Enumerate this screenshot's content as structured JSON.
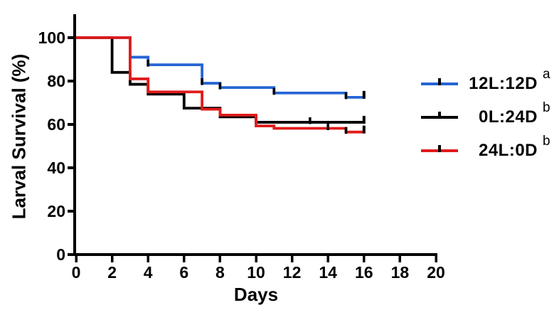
{
  "chart_data": {
    "type": "line",
    "subtype": "kaplan-meier-step-survival",
    "title": "",
    "xlabel": "Days",
    "ylabel": "Larval Survival (%)",
    "xlim": [
      0,
      20
    ],
    "ylim": [
      0,
      100
    ],
    "xticks": [
      0,
      2,
      4,
      6,
      8,
      10,
      12,
      14,
      16,
      18,
      20
    ],
    "yticks": [
      0,
      20,
      40,
      60,
      80,
      100
    ],
    "grid": false,
    "legend_position": "right",
    "axis_color": "#000000",
    "censor_tick_color": "#000000",
    "series": [
      {
        "name": "12L:12D",
        "superscript": "a",
        "color": "#2565d4",
        "steps": [
          [
            0,
            100
          ],
          [
            3,
            91
          ],
          [
            4,
            87.5
          ],
          [
            7,
            79
          ],
          [
            8,
            77
          ],
          [
            11,
            74.5
          ],
          [
            15,
            72.5
          ]
        ],
        "end_day": 16,
        "censor_days": [
          4,
          7,
          8,
          11,
          15
        ],
        "end_tick": true
      },
      {
        "name": "0L:24D",
        "superscript": "b",
        "color": "#000000",
        "steps": [
          [
            0,
            100
          ],
          [
            2,
            84
          ],
          [
            3,
            78.5
          ],
          [
            4,
            74
          ],
          [
            6,
            67.5
          ],
          [
            8,
            63.5
          ],
          [
            10,
            61
          ]
        ],
        "end_day": 16,
        "censor_days": [
          13
        ],
        "end_tick": true
      },
      {
        "name": "24L:0D",
        "superscript": "b",
        "color": "#e01b1b",
        "steps": [
          [
            0,
            100
          ],
          [
            3,
            81
          ],
          [
            4,
            75
          ],
          [
            7,
            67
          ],
          [
            8,
            64.3
          ],
          [
            10,
            59.3
          ],
          [
            11,
            58.2
          ],
          [
            15,
            56.5
          ]
        ],
        "end_day": 16,
        "censor_days": [
          14,
          15
        ],
        "end_tick": true
      }
    ]
  }
}
